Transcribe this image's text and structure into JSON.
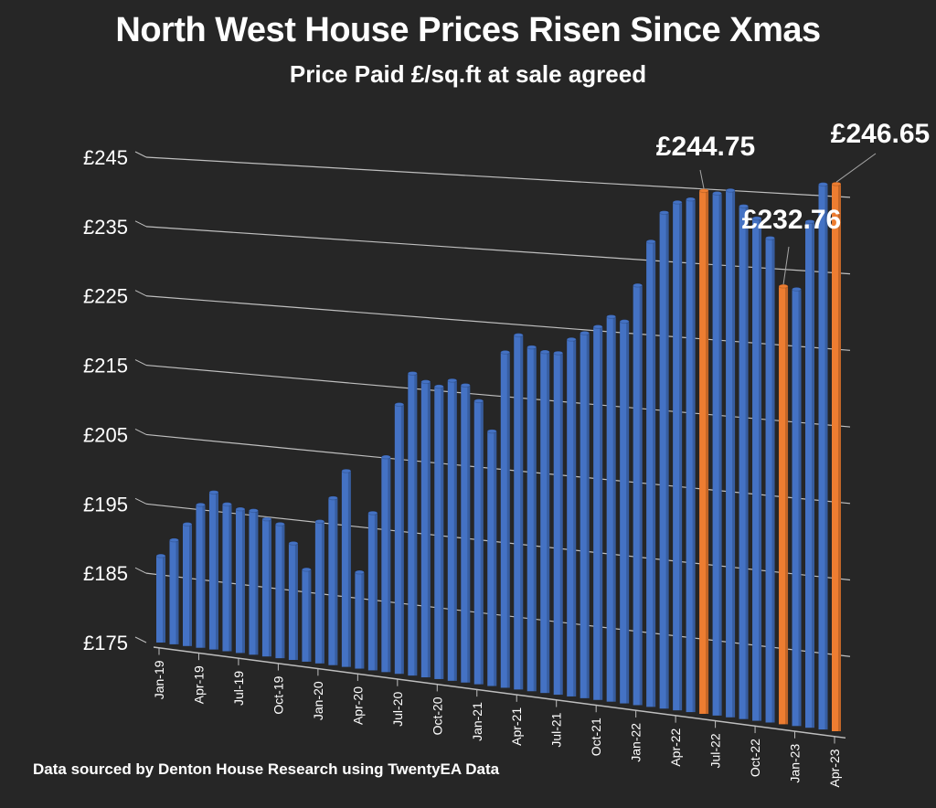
{
  "chart_data": {
    "type": "bar",
    "title": "North West House Prices Risen Since Xmas",
    "subtitle": "Price Paid £/sq.ft at sale agreed",
    "xlabel": "",
    "ylabel": "",
    "ylim": [
      175,
      245
    ],
    "y_ticks": [
      175,
      185,
      195,
      205,
      215,
      225,
      235,
      245
    ],
    "y_tick_labels": [
      "£175",
      "£185",
      "£195",
      "£205",
      "£215",
      "£225",
      "£235",
      "£245"
    ],
    "grid": true,
    "legend": "none",
    "categories": [
      "Jan-19",
      "Feb-19",
      "Mar-19",
      "Apr-19",
      "May-19",
      "Jun-19",
      "Jul-19",
      "Aug-19",
      "Sep-19",
      "Oct-19",
      "Nov-19",
      "Dec-19",
      "Jan-20",
      "Feb-20",
      "Mar-20",
      "Apr-20",
      "May-20",
      "Jun-20",
      "Jul-20",
      "Aug-20",
      "Sep-20",
      "Oct-20",
      "Nov-20",
      "Dec-20",
      "Jan-21",
      "Feb-21",
      "Mar-21",
      "Apr-21",
      "May-21",
      "Jun-21",
      "Jul-21",
      "Aug-21",
      "Sep-21",
      "Oct-21",
      "Nov-21",
      "Dec-21",
      "Jan-22",
      "Feb-22",
      "Mar-22",
      "Apr-22",
      "May-22",
      "Jun-22",
      "Jul-22",
      "Aug-22",
      "Sep-22",
      "Oct-22",
      "Nov-22",
      "Dec-22",
      "Jan-23",
      "Feb-23",
      "Mar-23",
      "Apr-23"
    ],
    "x_tick_labels": [
      "Jan-19",
      "Apr-19",
      "Jul-19",
      "Oct-19",
      "Jan-20",
      "Apr-20",
      "Jul-20",
      "Oct-20",
      "Jan-21",
      "Apr-21",
      "Jul-21",
      "Oct-21",
      "Jan-22",
      "Apr-22",
      "Jul-22",
      "Oct-22",
      "Jan-23",
      "Apr-23"
    ],
    "series": [
      {
        "name": "Price Paid £/sq.ft",
        "values": [
          187.5,
          190,
          192.5,
          195.5,
          197.5,
          196,
          195.5,
          195.5,
          194.5,
          194,
          191.5,
          188,
          195,
          198.5,
          202.5,
          188.5,
          197,
          205,
          212.5,
          217,
          216,
          215.5,
          216.5,
          216,
          214,
          210,
          221,
          223.5,
          222,
          221.5,
          221.5,
          223.5,
          224.5,
          225.5,
          227,
          226.5,
          231.5,
          237.5,
          241.5,
          243,
          243.5,
          244.75,
          244.5,
          245,
          243,
          241.5,
          239,
          232.76,
          232.5,
          241.5,
          246.5,
          246.65
        ]
      }
    ],
    "highlighted": [
      {
        "category": "Jun-22",
        "value": 244.75,
        "label": "£244.75"
      },
      {
        "category": "Dec-22",
        "value": 232.76,
        "label": "£232.76"
      },
      {
        "category": "Apr-23",
        "value": 246.65,
        "label": "£246.65"
      }
    ],
    "colors": {
      "bar": "#4472C4",
      "highlight": "#ED7D31",
      "background": "#262626",
      "grid": "#BFBFBF",
      "text": "#FFFFFF"
    }
  },
  "footer": {
    "source": "Data sourced by Denton House Research using TwentyEA Data"
  }
}
